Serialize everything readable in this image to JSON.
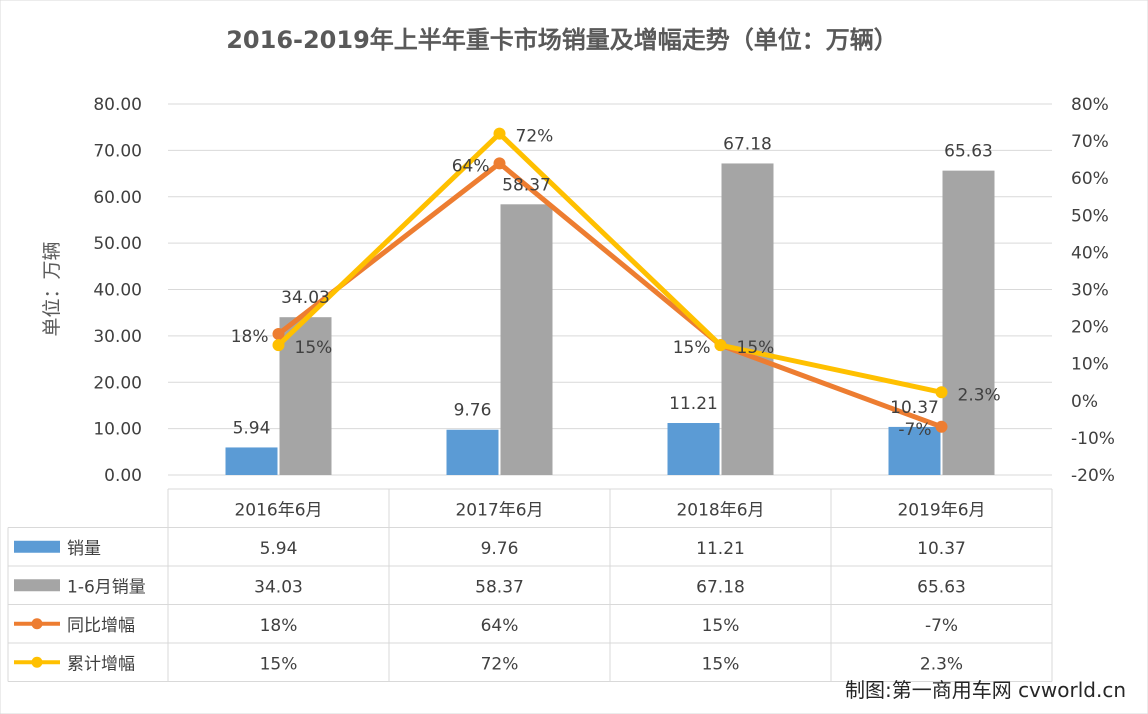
{
  "chart_data": {
    "type": "bar",
    "title": "2016-2019年上半年重卡市场销量及增幅走势（单位：万辆）",
    "ylabel": "单位：万辆",
    "categories": [
      "2016年6月",
      "2017年6月",
      "2018年6月",
      "2019年6月"
    ],
    "ylim": [
      0,
      80
    ],
    "y_ticks": [
      "0.00",
      "10.00",
      "20.00",
      "30.00",
      "40.00",
      "50.00",
      "60.00",
      "70.00",
      "80.00"
    ],
    "y2lim": [
      -20,
      80
    ],
    "y2_ticks": [
      "-20%",
      "-10%",
      "0%",
      "10%",
      "20%",
      "30%",
      "40%",
      "50%",
      "60%",
      "70%",
      "80%"
    ],
    "series": [
      {
        "name": "销量",
        "type": "bar",
        "axis": "left",
        "values": [
          5.94,
          9.76,
          11.21,
          10.37
        ],
        "labels": [
          "5.94",
          "9.76",
          "11.21",
          "10.37"
        ],
        "color": "#5b9bd5"
      },
      {
        "name": "1-6月销量",
        "type": "bar",
        "axis": "left",
        "values": [
          34.03,
          58.37,
          67.18,
          65.63
        ],
        "labels": [
          "34.03",
          "58.37",
          "67.18",
          "65.63"
        ],
        "color": "#a5a5a5"
      },
      {
        "name": "同比增幅",
        "type": "line",
        "axis": "right",
        "values": [
          18,
          64,
          15,
          -7
        ],
        "labels": [
          "18%",
          "64%",
          "15%",
          "-7%"
        ],
        "color": "#ed7d31"
      },
      {
        "name": "累计增幅",
        "type": "line",
        "axis": "right",
        "values": [
          15,
          72,
          15,
          2.3
        ],
        "labels": [
          "15%",
          "72%",
          "15%",
          "2.3%"
        ],
        "color": "#ffc000"
      }
    ],
    "grid": true,
    "legend": "data-table"
  },
  "credit": "制图:第一商用车网 cvworld.cn"
}
